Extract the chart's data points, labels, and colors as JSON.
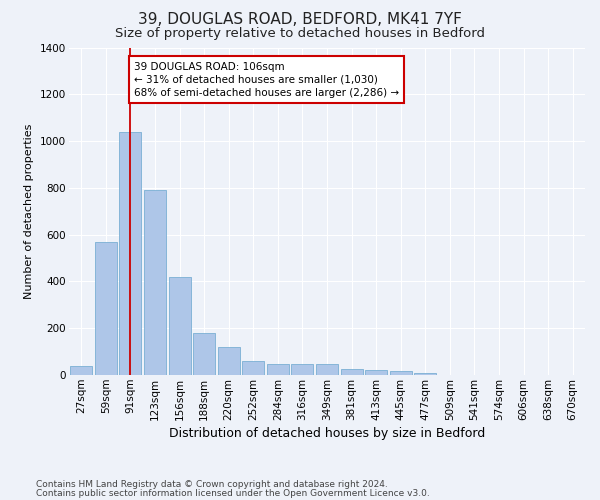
{
  "title1": "39, DOUGLAS ROAD, BEDFORD, MK41 7YF",
  "title2": "Size of property relative to detached houses in Bedford",
  "xlabel": "Distribution of detached houses by size in Bedford",
  "ylabel": "Number of detached properties",
  "categories": [
    "27sqm",
    "59sqm",
    "91sqm",
    "123sqm",
    "156sqm",
    "188sqm",
    "220sqm",
    "252sqm",
    "284sqm",
    "316sqm",
    "349sqm",
    "381sqm",
    "413sqm",
    "445sqm",
    "477sqm",
    "509sqm",
    "541sqm",
    "574sqm",
    "606sqm",
    "638sqm",
    "670sqm"
  ],
  "values": [
    40,
    570,
    1040,
    790,
    420,
    180,
    120,
    60,
    45,
    45,
    45,
    25,
    20,
    15,
    10,
    0,
    0,
    0,
    0,
    0,
    0
  ],
  "bar_color": "#aec6e8",
  "bar_edge_color": "#7aafd4",
  "vline_x_index": 2,
  "vline_color": "#cc0000",
  "annotation_text": "39 DOUGLAS ROAD: 106sqm\n← 31% of detached houses are smaller (1,030)\n68% of semi-detached houses are larger (2,286) →",
  "annotation_box_color": "#ffffff",
  "annotation_box_edge_color": "#cc0000",
  "ylim": [
    0,
    1400
  ],
  "yticks": [
    0,
    200,
    400,
    600,
    800,
    1000,
    1200,
    1400
  ],
  "bg_color": "#eef2f9",
  "plot_bg_color": "#eef2f9",
  "footer1": "Contains HM Land Registry data © Crown copyright and database right 2024.",
  "footer2": "Contains public sector information licensed under the Open Government Licence v3.0.",
  "title1_fontsize": 11,
  "title2_fontsize": 9.5,
  "xlabel_fontsize": 9,
  "ylabel_fontsize": 8,
  "tick_fontsize": 7.5,
  "annotation_fontsize": 7.5,
  "footer_fontsize": 6.5
}
